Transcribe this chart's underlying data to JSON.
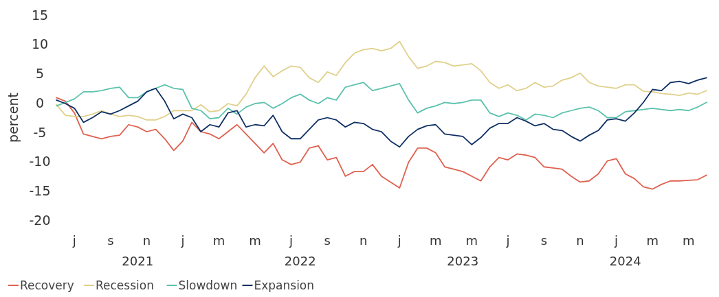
{
  "chart_data": {
    "type": "line",
    "ylabel": "percent",
    "categories": [
      null,
      null,
      "j",
      null,
      null,
      null,
      "s",
      null,
      null,
      null,
      "n",
      null,
      null,
      null,
      "j",
      null,
      null,
      null,
      "m",
      null,
      null,
      null,
      "m",
      null,
      null,
      null,
      "j",
      null,
      null,
      null,
      "s",
      null,
      null,
      null,
      "n",
      null,
      null,
      null,
      "j",
      null,
      null,
      null,
      "m",
      null,
      null,
      null,
      "m",
      null,
      null,
      null,
      "j",
      null,
      null,
      null,
      "s",
      null,
      null,
      null,
      "n",
      null,
      null,
      null,
      "j",
      null,
      null,
      null,
      "m",
      null,
      null,
      null,
      "m",
      null,
      null
    ],
    "series": [
      {
        "name": "Recovery",
        "color": "#e0604f",
        "values": [
          0.9,
          0.3,
          -1.7,
          -5.3,
          -5.7,
          -6.1,
          -5.7,
          -5.5,
          -3.7,
          -4.1,
          -4.9,
          -4.5,
          -6.1,
          -8.1,
          -6.5,
          -3.3,
          -4.9,
          -5.3,
          -6.1,
          -4.9,
          -3.7,
          -5.3,
          -6.9,
          -8.5,
          -6.9,
          -9.7,
          -10.5,
          -10.1,
          -7.7,
          -7.3,
          -9.7,
          -9.3,
          -12.5,
          -11.7,
          -11.7,
          -10.5,
          -12.5,
          -13.5,
          -14.5,
          -10.1,
          -7.7,
          -7.7,
          -8.5,
          -10.9,
          -11.3,
          -11.7,
          -12.5,
          -13.3,
          -10.9,
          -9.3,
          -9.7,
          -8.7,
          -8.9,
          -9.3,
          -10.9,
          -11.1,
          -11.3,
          -12.5,
          -13.5,
          -13.3,
          -12.1,
          -9.9,
          -9.5,
          -12.1,
          -12.9,
          -14.3,
          -14.7,
          -13.9,
          -13.3,
          -13.3,
          -13.2,
          -13.1,
          -12.3
        ]
      },
      {
        "name": "Recession",
        "color": "#e0d08b",
        "values": [
          -0.3,
          -2.1,
          -2.3,
          -2.3,
          -1.9,
          -1.3,
          -1.9,
          -2.3,
          -2.1,
          -2.3,
          -2.9,
          -2.9,
          -2.3,
          -1.3,
          -1.3,
          -1.3,
          -0.3,
          -1.5,
          -1.3,
          -0.1,
          -0.5,
          1.5,
          4.3,
          6.3,
          4.5,
          5.5,
          6.3,
          6.1,
          4.3,
          3.5,
          5.3,
          4.7,
          6.9,
          8.5,
          9.1,
          9.3,
          8.9,
          9.3,
          10.5,
          7.9,
          5.9,
          6.3,
          7.1,
          6.9,
          6.3,
          6.5,
          6.7,
          5.5,
          3.5,
          2.5,
          3.1,
          2.1,
          2.5,
          3.5,
          2.7,
          2.9,
          3.9,
          4.3,
          5.1,
          3.5,
          2.9,
          2.7,
          2.5,
          3.1,
          3.1,
          2.0,
          1.9,
          1.6,
          1.5,
          1.3,
          1.7,
          1.5,
          2.1
        ]
      },
      {
        "name": "Slowdown",
        "color": "#5bc2ad",
        "values": [
          -0.5,
          0.1,
          0.7,
          1.9,
          1.9,
          2.1,
          2.5,
          2.7,
          0.9,
          0.9,
          1.9,
          2.5,
          3.1,
          2.5,
          2.3,
          -0.9,
          -1.3,
          -2.7,
          -2.5,
          -0.9,
          -1.9,
          -0.7,
          -0.1,
          0.1,
          -0.9,
          -0.1,
          0.9,
          1.5,
          0.5,
          -0.1,
          0.9,
          0.5,
          2.7,
          3.1,
          3.5,
          2.1,
          2.5,
          2.9,
          3.3,
          0.5,
          -1.7,
          -0.9,
          -0.5,
          0.1,
          -0.1,
          0.1,
          0.5,
          0.5,
          -1.7,
          -2.3,
          -1.7,
          -2.1,
          -2.9,
          -1.9,
          -2.1,
          -2.5,
          -1.7,
          -1.3,
          -0.9,
          -0.7,
          -1.3,
          -2.5,
          -2.5,
          -1.5,
          -1.3,
          -1.1,
          -0.9,
          -1.1,
          -1.3,
          -1.1,
          -1.3,
          -0.7,
          0.1
        ]
      },
      {
        "name": "Expansion",
        "color": "#0e2f63",
        "values": [
          0.5,
          -0.1,
          -0.9,
          -3.3,
          -2.5,
          -1.5,
          -1.9,
          -1.3,
          -0.5,
          0.3,
          1.9,
          2.5,
          0.3,
          -2.7,
          -1.9,
          -2.5,
          -4.9,
          -3.7,
          -4.1,
          -1.7,
          -1.3,
          -4.1,
          -3.7,
          -3.9,
          -2.1,
          -4.9,
          -6.1,
          -6.1,
          -4.5,
          -2.9,
          -2.5,
          -2.9,
          -4.1,
          -3.3,
          -3.5,
          -4.5,
          -4.9,
          -6.5,
          -7.5,
          -5.7,
          -4.5,
          -3.9,
          -3.7,
          -5.3,
          -5.5,
          -5.7,
          -7.1,
          -5.9,
          -4.3,
          -3.5,
          -3.5,
          -2.5,
          -3.1,
          -3.9,
          -3.5,
          -4.5,
          -4.7,
          -5.7,
          -6.5,
          -5.5,
          -4.7,
          -2.9,
          -2.7,
          -3.1,
          -1.7,
          0.1,
          2.3,
          2.1,
          3.5,
          3.7,
          3.3,
          3.9,
          4.3
        ]
      }
    ],
    "ylim": [
      -20,
      15
    ],
    "yticks": [
      -20,
      -15,
      -10,
      -5,
      0,
      5,
      10,
      15
    ],
    "annotations": [
      "2021",
      "2022",
      "2023",
      "2024"
    ],
    "grid": false,
    "legend": "bottom left",
    "line_style": "solid"
  }
}
